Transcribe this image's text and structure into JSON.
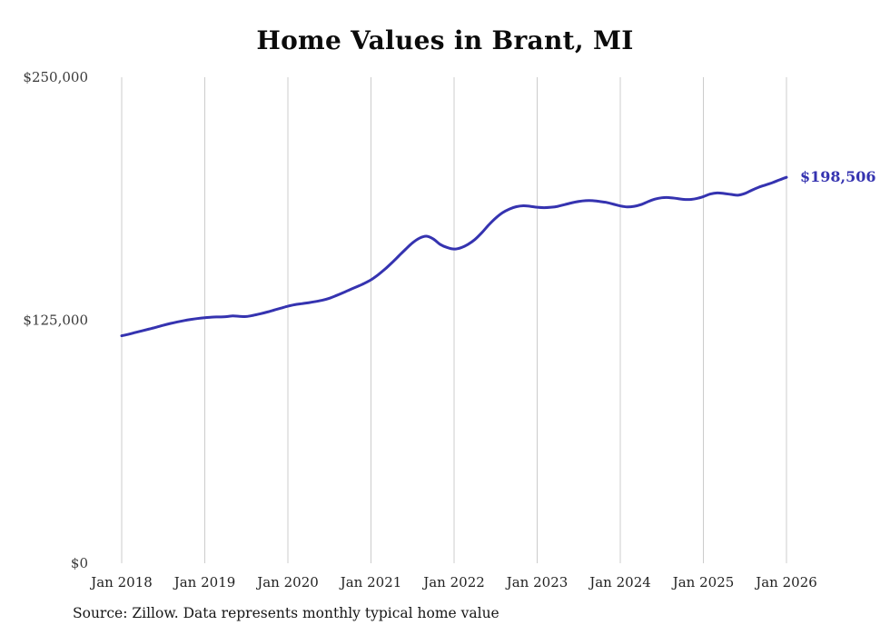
{
  "title": "Home Values in Brant, MI",
  "source_note": "Source: Zillow. Data represents monthly typical home value",
  "end_label": "$198,506",
  "colors": {
    "line": "#3533b0",
    "grid": "#cccccc",
    "title": "#0b0b0b",
    "tick_text": "#3a3a3a"
  },
  "chart_data": {
    "type": "line",
    "title": "Home Values in Brant, MI",
    "xlabel": "",
    "ylabel": "",
    "x_start": "2018-01",
    "x_end": "2026-01",
    "x_tick_labels": [
      "Jan 2018",
      "Jan 2019",
      "Jan 2020",
      "Jan 2021",
      "Jan 2022",
      "Jan 2023",
      "Jan 2024",
      "Jan 2025",
      "Jan 2026"
    ],
    "y_ticks": [
      0,
      125000,
      250000
    ],
    "y_tick_labels": [
      "$0",
      "$125,000",
      "$250,000"
    ],
    "ylim": [
      0,
      250000
    ],
    "grid": "vertical-only",
    "legend": false,
    "final_value": 198506,
    "series": [
      {
        "name": "Monthly typical home value",
        "values": [
          117000,
          117800,
          118700,
          119600,
          120500,
          121400,
          122400,
          123300,
          124100,
          124800,
          125400,
          125900,
          126300,
          126600,
          126700,
          126800,
          127200,
          127000,
          126900,
          127500,
          128300,
          129200,
          130200,
          131200,
          132200,
          133000,
          133500,
          134000,
          134600,
          135300,
          136300,
          137700,
          139200,
          140800,
          142300,
          143900,
          145800,
          148300,
          151200,
          154500,
          158000,
          161500,
          164800,
          167200,
          168200,
          166800,
          164000,
          162400,
          161600,
          162300,
          164000,
          166500,
          170000,
          174000,
          177500,
          180300,
          182200,
          183400,
          183900,
          183600,
          183100,
          182900,
          183100,
          183600,
          184500,
          185400,
          186100,
          186500,
          186500,
          186100,
          185600,
          184700,
          183800,
          183300,
          183600,
          184500,
          186000,
          187300,
          188000,
          188100,
          187700,
          187200,
          187100,
          187600,
          188600,
          189900,
          190500,
          190200,
          189700,
          189300,
          190200,
          191900,
          193400,
          194600,
          195800,
          197200,
          198506
        ]
      }
    ]
  }
}
